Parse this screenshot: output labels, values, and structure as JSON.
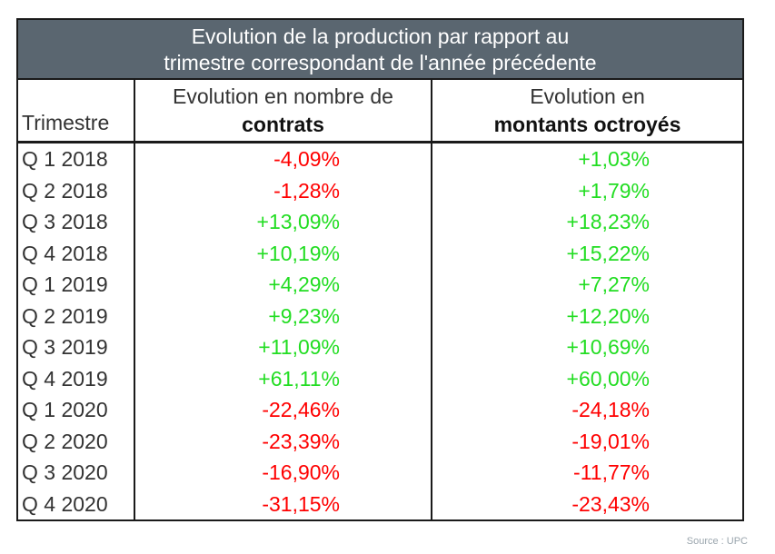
{
  "title": {
    "line1": "Evolution de la production par rapport au",
    "line2": "trimestre correspondant de l'année précédente"
  },
  "columns": {
    "trimestre": "Trimestre",
    "contrats_line1": "Evolution en nombre de",
    "contrats_line2": "contrats",
    "montants_line1": "Evolution en",
    "montants_line2": "montants octroyés"
  },
  "colors": {
    "negative": "#ff0000",
    "positive": "#22dd22",
    "title_bg": "#5a6670"
  },
  "rows": [
    {
      "trimestre": "Q 1 2018",
      "contrats": "-4,09%",
      "montants": "+1,03%"
    },
    {
      "trimestre": "Q 2 2018",
      "contrats": "-1,28%",
      "montants": "+1,79%"
    },
    {
      "trimestre": "Q 3 2018",
      "contrats": "+13,09%",
      "montants": "+18,23%"
    },
    {
      "trimestre": "Q 4 2018",
      "contrats": "+10,19%",
      "montants": "+15,22%"
    },
    {
      "trimestre": "Q 1 2019",
      "contrats": "+4,29%",
      "montants": "+7,27%"
    },
    {
      "trimestre": "Q 2 2019",
      "contrats": "+9,23%",
      "montants": "+12,20%"
    },
    {
      "trimestre": "Q 3 2019",
      "contrats": "+11,09%",
      "montants": "+10,69%"
    },
    {
      "trimestre": "Q 4 2019",
      "contrats": "+61,11%",
      "montants": "+60,00%"
    },
    {
      "trimestre": "Q 1 2020",
      "contrats": "-22,46%",
      "montants": "-24,18%"
    },
    {
      "trimestre": "Q 2 2020",
      "contrats": "-23,39%",
      "montants": "-19,01%"
    },
    {
      "trimestre": "Q 3 2020",
      "contrats": "-16,90%",
      "montants": "-11,77%"
    },
    {
      "trimestre": "Q 4 2020",
      "contrats": "-31,15%",
      "montants": "-23,43%"
    }
  ],
  "source": "Source : UPC"
}
